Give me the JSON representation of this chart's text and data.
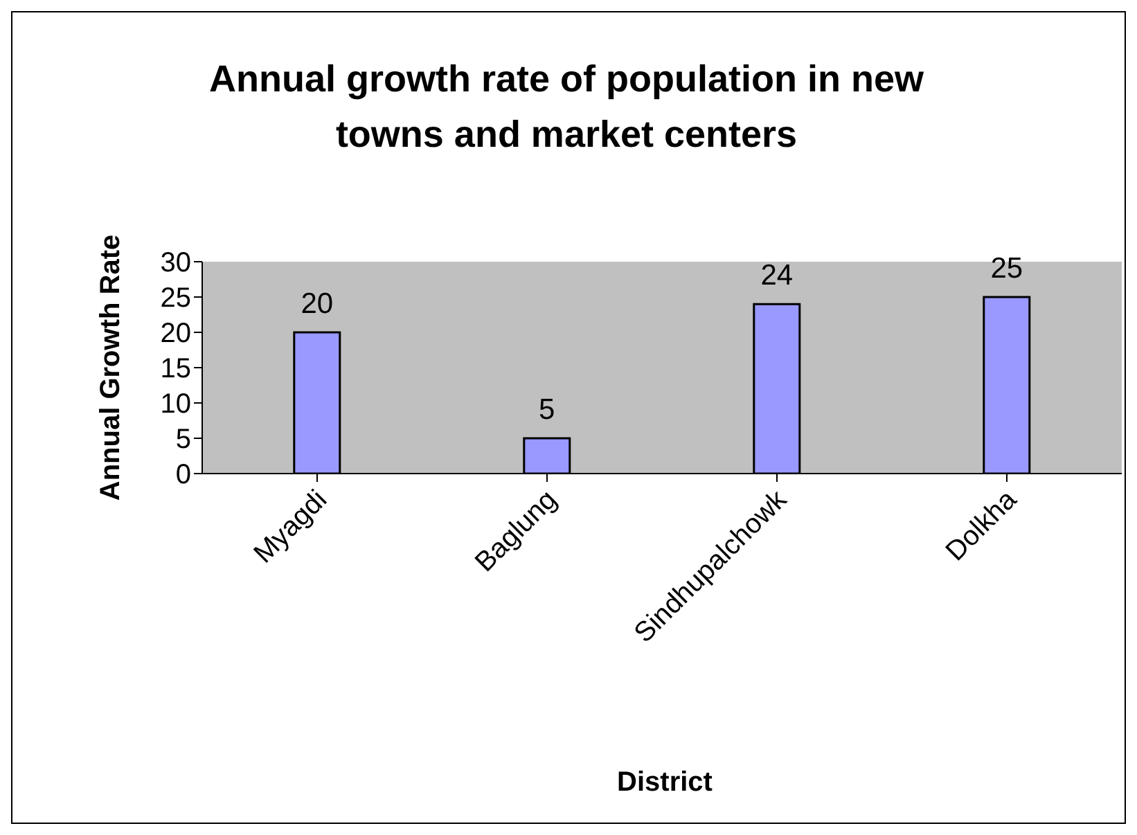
{
  "chart_data": {
    "type": "bar",
    "title": "Annual growth rate of population in new towns and market centers",
    "xlabel": "District",
    "ylabel": "Annual Growth Rate",
    "categories": [
      "Myagdi",
      "Baglung",
      "Sindhupalchowk",
      "Dolkha"
    ],
    "values": [
      20,
      5,
      24,
      25
    ],
    "color": "#9999ff",
    "ylim": [
      0,
      30
    ],
    "yticks": [
      0,
      5,
      10,
      15,
      20,
      25,
      30
    ],
    "grid": false,
    "data_labels": true
  }
}
